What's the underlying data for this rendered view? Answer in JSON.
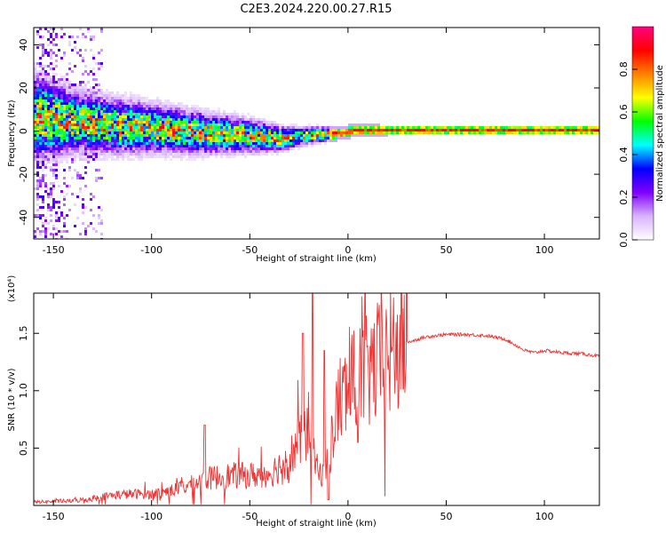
{
  "title": "C2E3.2024.220.00.27.R15",
  "charts": [
    {
      "type": "heatmap",
      "xlabel": "Height of straight line (km)",
      "ylabel": "Frequency (Hz)",
      "xlim": [
        -160,
        128
      ],
      "ylim": [
        -50,
        48
      ],
      "xticks": [
        -150,
        -100,
        -50,
        0,
        50,
        100
      ],
      "yticks": [
        -40,
        -20,
        0,
        20,
        40
      ],
      "colorbar": {
        "label": "Normalized spectral amplitude",
        "range": [
          0,
          1
        ],
        "ticks": [
          0.0,
          0.2,
          0.4,
          0.6,
          0.8
        ],
        "colors": [
          "#ffffff",
          "#d9b3ff",
          "#8000ff",
          "#0000ff",
          "#00ffff",
          "#00ff00",
          "#ffff00",
          "#ff8000",
          "#ff0000",
          "#ff0080"
        ]
      },
      "ridge": {
        "x": [
          -160,
          -150,
          -140,
          -120,
          -100,
          -80,
          -60,
          -45,
          -35,
          -25,
          -15,
          -5,
          0,
          5,
          20,
          50,
          80,
          100,
          128
        ],
        "center_hz": [
          7,
          6,
          5,
          3,
          2,
          0,
          -1,
          -2,
          -3,
          -2,
          -1,
          -0.5,
          0.5,
          1,
          1,
          1,
          1,
          1,
          1
        ],
        "halfwidth_hz": [
          14,
          12,
          10,
          9,
          8,
          7,
          6,
          5,
          4,
          3,
          2.5,
          2,
          2,
          1.8,
          1.5,
          1.5,
          1.5,
          1.5,
          1.5
        ]
      }
    },
    {
      "type": "line",
      "xlabel": "Height of straight line (km)",
      "ylabel": "SNR (10 * v/v)",
      "yscale_label": "(x10⁴)",
      "xlim": [
        -160,
        128
      ],
      "ylim": [
        0,
        1.85
      ],
      "xticks": [
        -150,
        -100,
        -50,
        0,
        50,
        100
      ],
      "yticks": [
        0.5,
        1.0,
        1.5
      ],
      "color": "#ee3333",
      "envelope": {
        "x": [
          -160,
          -140,
          -130,
          -120,
          -110,
          -100,
          -90,
          -80,
          -70,
          -60,
          -50,
          -40,
          -30,
          -25,
          -20,
          -15,
          -10,
          -5,
          0,
          5,
          10,
          20,
          30,
          40,
          50,
          60,
          70,
          80,
          85,
          90,
          95,
          100,
          110,
          120,
          128
        ],
        "y": [
          0.03,
          0.04,
          0.06,
          0.09,
          0.1,
          0.1,
          0.13,
          0.18,
          0.24,
          0.26,
          0.26,
          0.28,
          0.4,
          0.55,
          0.7,
          0.25,
          0.4,
          0.9,
          1.0,
          1.1,
          1.15,
          1.3,
          1.42,
          1.47,
          1.49,
          1.49,
          1.48,
          1.45,
          1.4,
          1.35,
          1.33,
          1.35,
          1.33,
          1.32,
          1.3
        ]
      },
      "spikes": [
        {
          "x": -18,
          "y": 1.85
        },
        {
          "x": -23,
          "y": 1.5
        },
        {
          "x": -12,
          "y": 1.35
        },
        {
          "x": -10,
          "y": 0.05
        },
        {
          "x": -73,
          "y": 0.7
        },
        {
          "x": 5,
          "y": 0.55
        }
      ]
    }
  ]
}
